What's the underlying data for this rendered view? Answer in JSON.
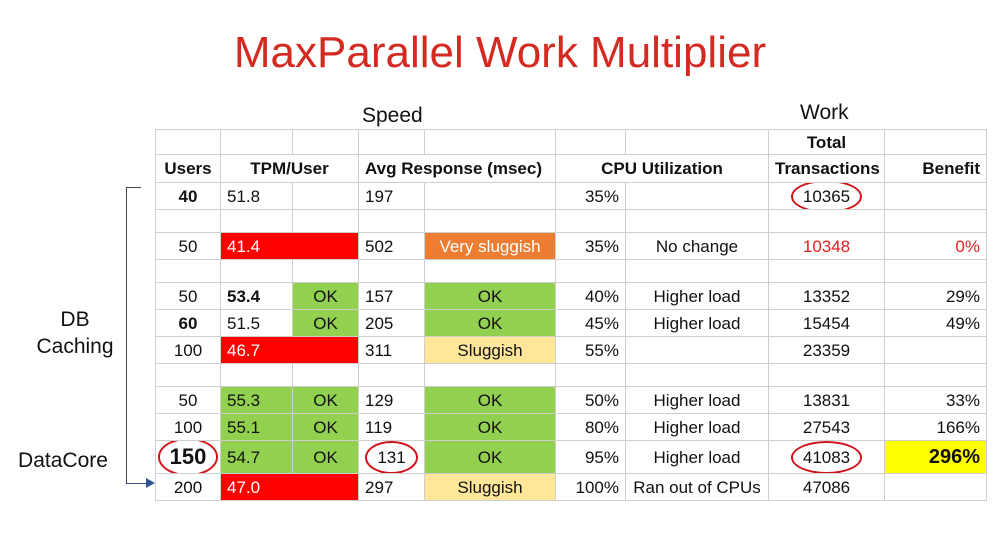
{
  "title": "MaxParallel Work Multiplier",
  "group_speed": "Speed",
  "group_work": "Work",
  "side_labels": {
    "db_caching": "DB\nCaching",
    "datacore": "DataCore"
  },
  "headers": {
    "users": "Users",
    "tpm": "TPM/User",
    "avg": "Avg Response (msec)",
    "cpu": "CPU Utilization",
    "total_line1": "Total",
    "total_line2": "Transactions",
    "benefit": "Benefit"
  },
  "rows": [
    {
      "users": "40",
      "tpm": "51.8",
      "tpm_status": "",
      "resp": "197",
      "resp_status": "",
      "cpu": "35%",
      "cpu_note": "",
      "total": "10365",
      "benefit": ""
    },
    {
      "users": "50",
      "tpm": "41.4",
      "tpm_status": "",
      "resp": "502",
      "resp_status": "Very sluggish",
      "cpu": "35%",
      "cpu_note": "No change",
      "total": "10348",
      "benefit": "0%"
    },
    {
      "users": "50",
      "tpm": "53.4",
      "tpm_status": "OK",
      "resp": "157",
      "resp_status": "OK",
      "cpu": "40%",
      "cpu_note": "Higher load",
      "total": "13352",
      "benefit": "29%"
    },
    {
      "users": "60",
      "tpm": "51.5",
      "tpm_status": "OK",
      "resp": "205",
      "resp_status": "OK",
      "cpu": "45%",
      "cpu_note": "Higher load",
      "total": "15454",
      "benefit": "49%"
    },
    {
      "users": "100",
      "tpm": "46.7",
      "tpm_status": "",
      "resp": "311",
      "resp_status": "Sluggish",
      "cpu": "55%",
      "cpu_note": "",
      "total": "23359",
      "benefit": ""
    },
    {
      "users": "50",
      "tpm": "55.3",
      "tpm_status": "OK",
      "resp": "129",
      "resp_status": "OK",
      "cpu": "50%",
      "cpu_note": "Higher load",
      "total": "13831",
      "benefit": "33%"
    },
    {
      "users": "100",
      "tpm": "55.1",
      "tpm_status": "OK",
      "resp": "119",
      "resp_status": "OK",
      "cpu": "80%",
      "cpu_note": "Higher load",
      "total": "27543",
      "benefit": "166%"
    },
    {
      "users": "150",
      "tpm": "54.7",
      "tpm_status": "OK",
      "resp": "131",
      "resp_status": "OK",
      "cpu": "95%",
      "cpu_note": "Higher load",
      "total": "41083",
      "benefit": "296%"
    },
    {
      "users": "200",
      "tpm": "47.0",
      "tpm_status": "",
      "resp": "297",
      "resp_status": "Sluggish",
      "cpu": "100%",
      "cpu_note": "Ran out of CPUs",
      "total": "47086",
      "benefit": ""
    }
  ],
  "colors": {
    "title": "#d42a22",
    "bad": "#ff0000",
    "ok": "#92d050",
    "very_sluggish": "#ed7d31",
    "sluggish": "#ffe699",
    "highlight": "#ffff00",
    "circle": "#d0141a"
  }
}
